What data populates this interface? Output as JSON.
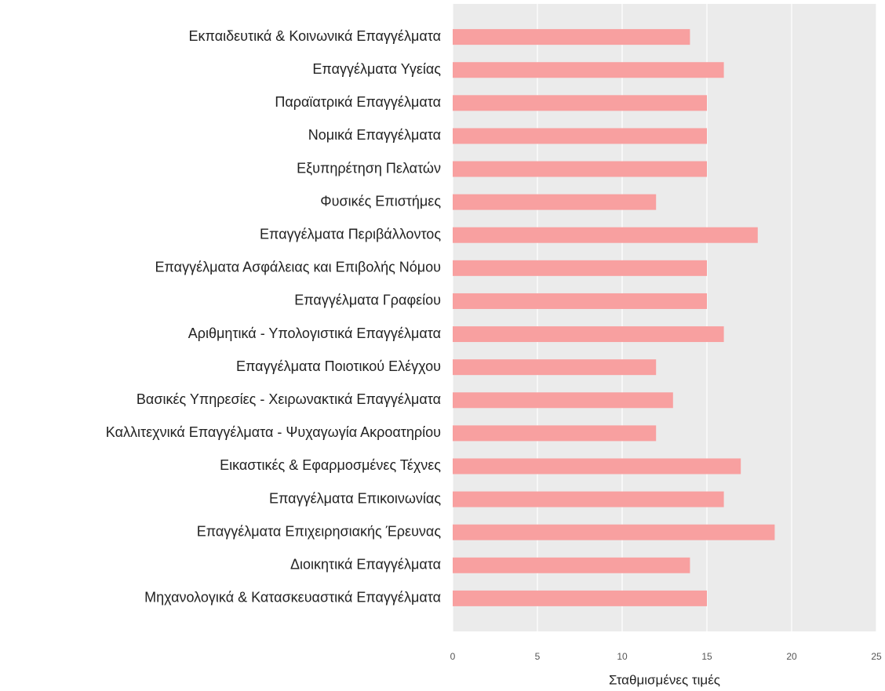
{
  "chart_data": {
    "type": "bar",
    "orientation": "horizontal",
    "x_label": "Σταθμισμένες τιμές",
    "categories": [
      "Εκπαιδευτικά & Κοινωνικά Επαγγέλματα",
      "Επαγγέλματα Υγείας",
      "Παραϊατρικά Επαγγέλματα",
      "Νομικά Επαγγέλματα",
      "Εξυπηρέτηση Πελατών",
      "Φυσικές Επιστήμες",
      "Επαγγέλματα Περιβάλλοντος",
      "Επαγγέλματα Ασφάλειας και Επιβολής Νόμου",
      "Επαγγέλματα Γραφείου",
      "Αριθμητικά - Υπολογιστικά Επαγγέλματα",
      "Επαγγέλματα Ποιοτικού Ελέγχου",
      "Βασικές Υπηρεσίες - Χειρωνακτικά Επαγγέλματα",
      "Καλλιτεχνικά Επαγγέλματα -  Ψυχαγωγία Ακροατηρίου",
      "Εικαστικές & Εφαρμοσμένες Τέχνες",
      "Επαγγέλματα Επικοινωνίας",
      "Επαγγέλματα Επιχειρησιακής Έρευνας",
      "Διοικητικά Επαγγέλματα",
      "Μηχανολογικά & Κατασκευαστικά Επαγγέλματα"
    ],
    "values": [
      14,
      16,
      15,
      15,
      15,
      12,
      18,
      15,
      15,
      16,
      12,
      13,
      12,
      17,
      16,
      19,
      14,
      15
    ],
    "color": "#f8a0a0",
    "xlim": [
      0,
      25
    ],
    "xticks": [
      0,
      5,
      10,
      15,
      20,
      25
    ],
    "grid": true
  }
}
